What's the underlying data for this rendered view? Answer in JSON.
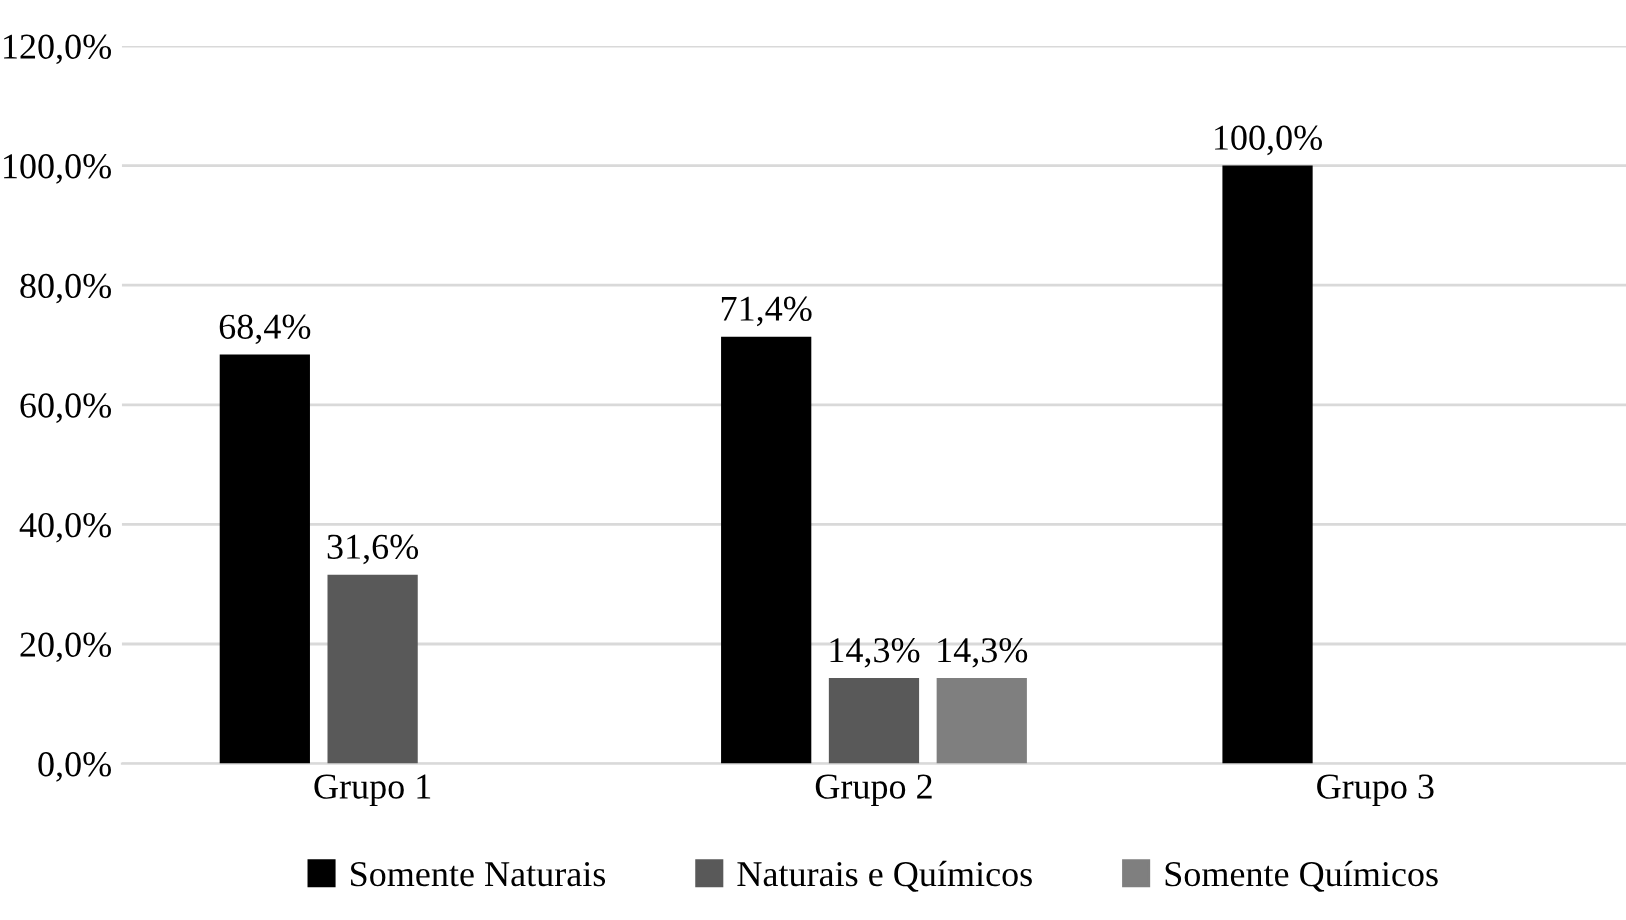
{
  "chart_data": {
    "type": "bar",
    "categories": [
      "Grupo 1",
      "Grupo 2",
      "Grupo 3"
    ],
    "series": [
      {
        "name": "Somente Naturais",
        "color": "#000000",
        "values": [
          68.4,
          71.4,
          100.0
        ],
        "value_labels": [
          "68,4%",
          "71,4%",
          "100,0%"
        ]
      },
      {
        "name": "Naturais e Químicos",
        "color": "#595959",
        "values": [
          31.6,
          14.3,
          null
        ],
        "value_labels": [
          "31,6%",
          "14,3%",
          null
        ]
      },
      {
        "name": "Somente Químicos",
        "color": "#7f7f7f",
        "values": [
          null,
          14.3,
          null
        ],
        "value_labels": [
          null,
          "14,3%",
          null
        ]
      }
    ],
    "ylim": [
      0,
      120
    ],
    "yticks": [
      {
        "value": 0,
        "label": "0,0%"
      },
      {
        "value": 20,
        "label": "20,0%"
      },
      {
        "value": 40,
        "label": "40,0%"
      },
      {
        "value": 60,
        "label": "60,0%"
      },
      {
        "value": 80,
        "label": "80,0%"
      },
      {
        "value": 100,
        "label": "100,0%"
      },
      {
        "value": 120,
        "label": "120,0%"
      }
    ],
    "grid": "y",
    "legend": "bottom"
  }
}
